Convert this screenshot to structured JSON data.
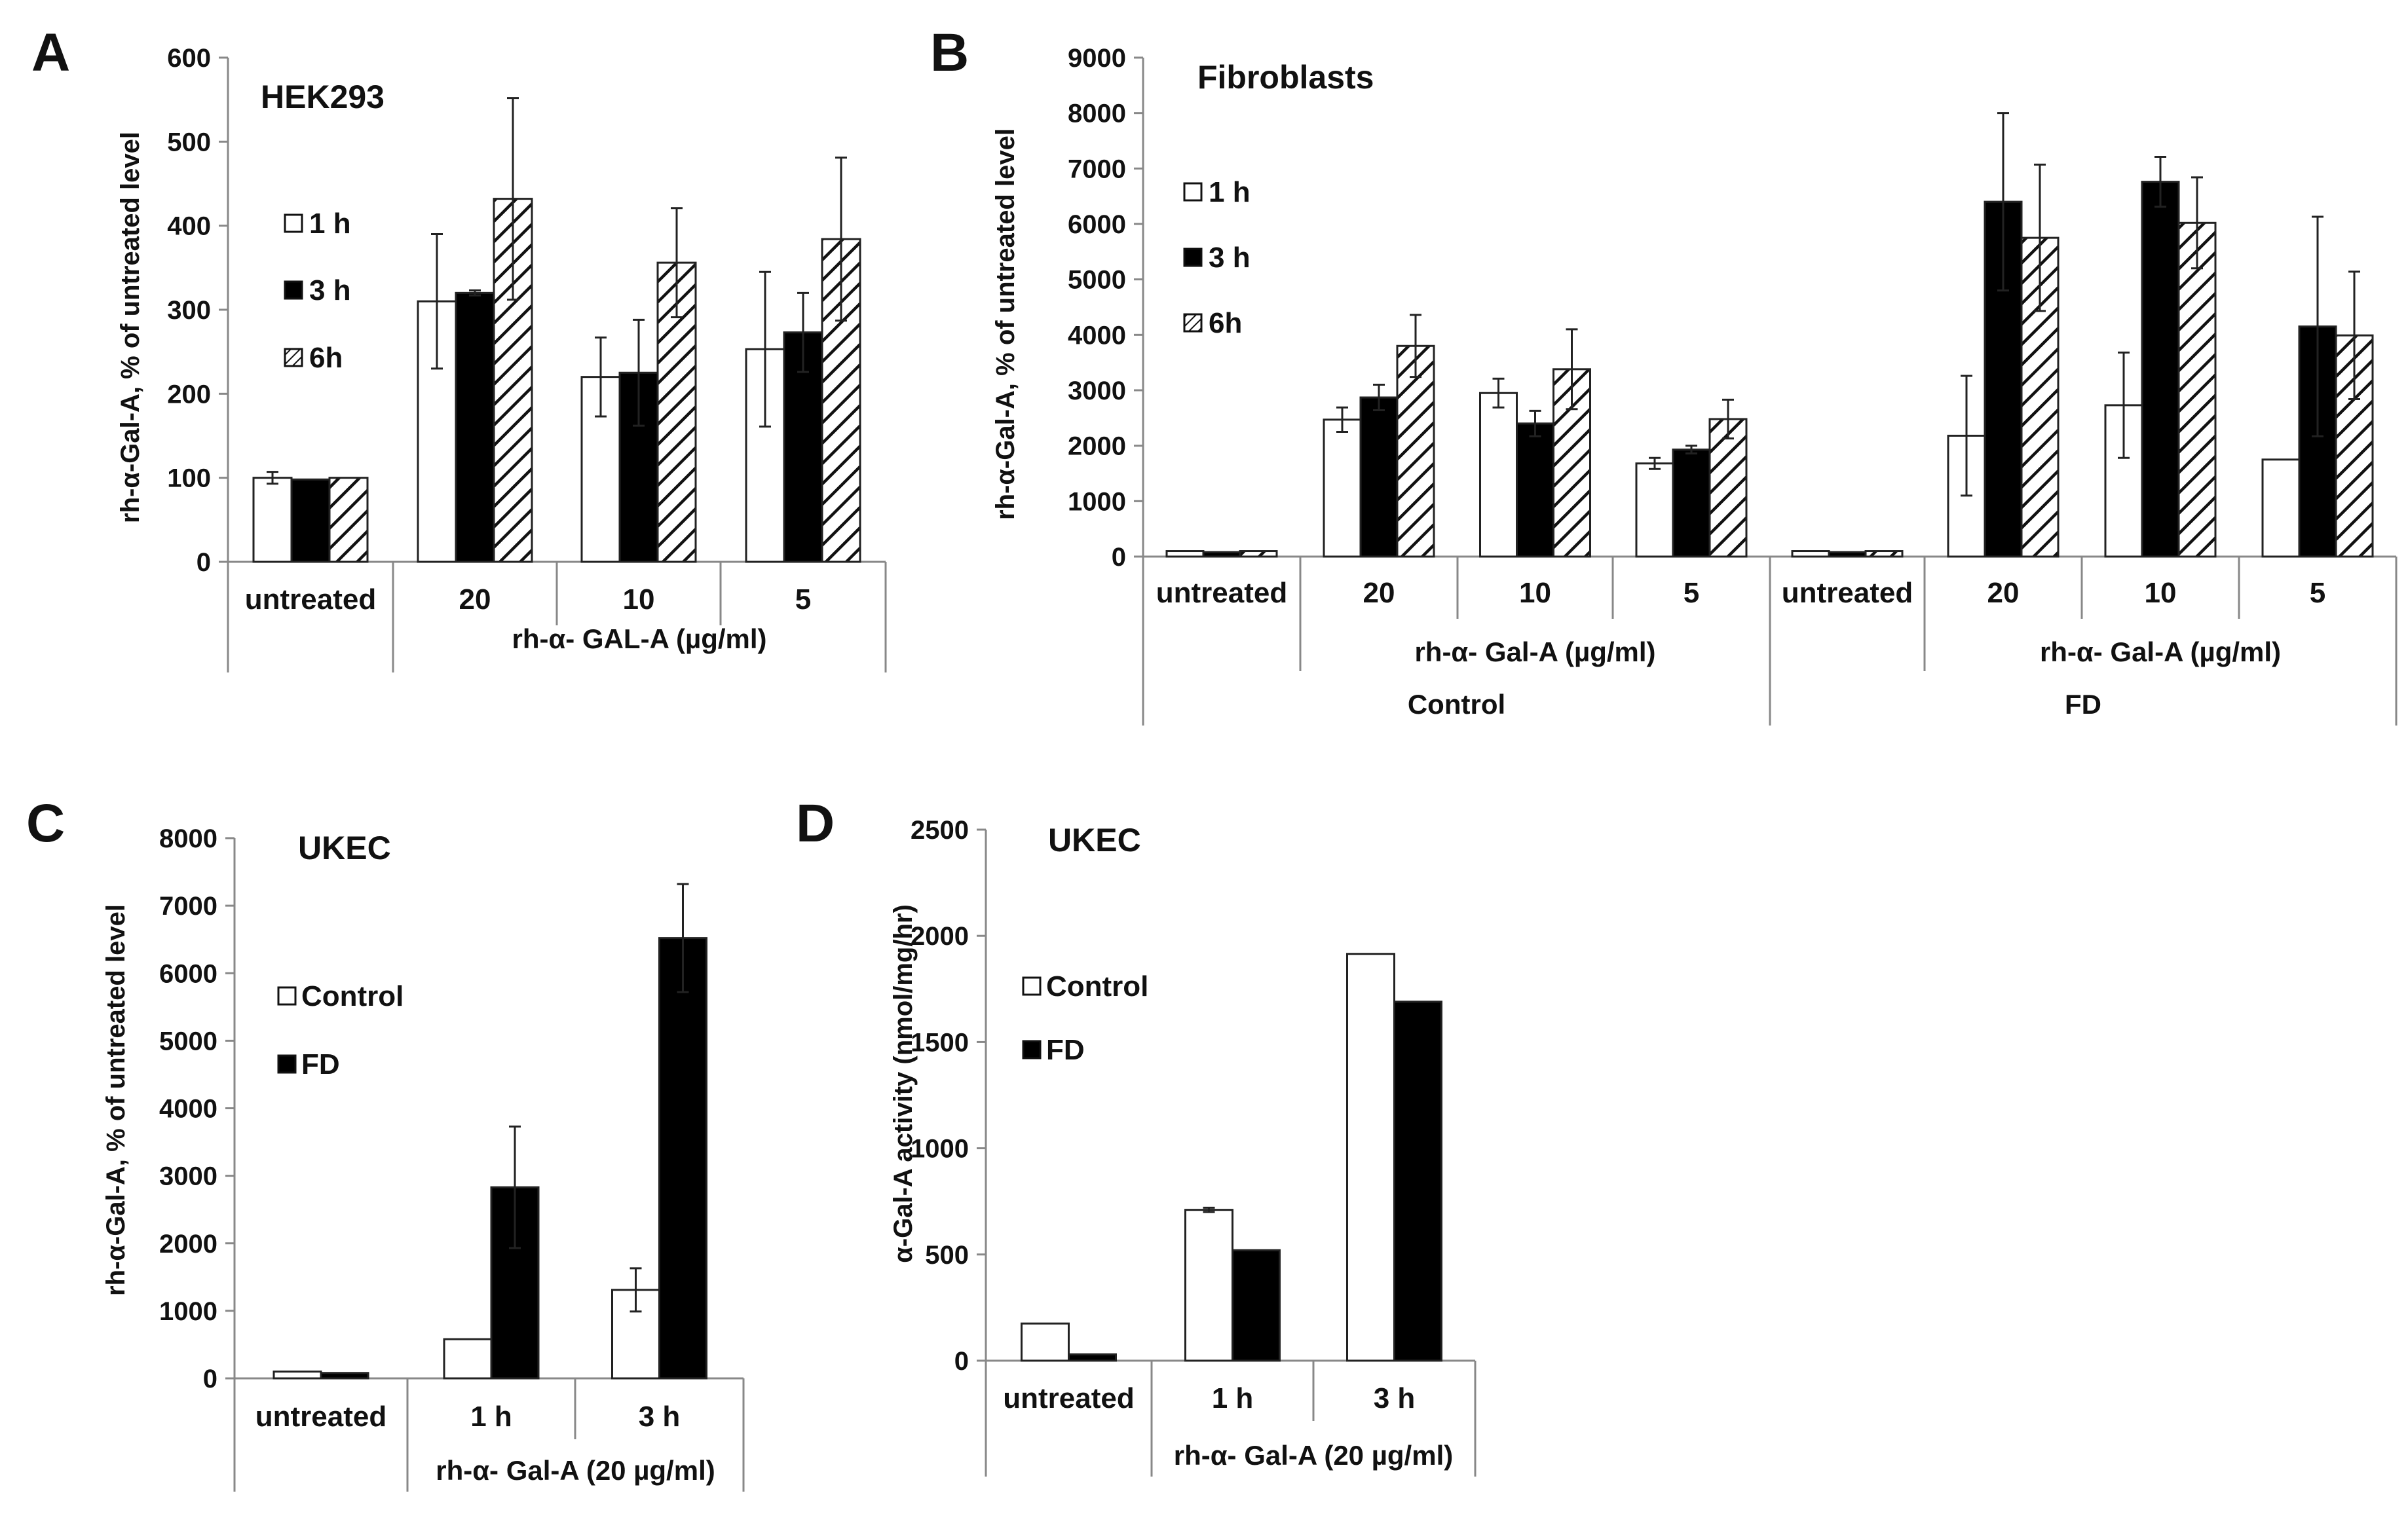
{
  "figure": {
    "colors": {
      "control_fill": "#ffffff",
      "fd_fill": "#000000",
      "stroke": "#222222",
      "axis": "#888888"
    }
  },
  "chart_data": [
    {
      "panel": "A",
      "type": "bar",
      "title": "HEK293",
      "ylabel": "rh-α-Gal-A, % of untreated level",
      "ylim": [
        0,
        600
      ],
      "yticks": [
        0,
        100,
        200,
        300,
        400,
        500,
        600
      ],
      "categories": [
        "untreated",
        "20",
        "10",
        "5"
      ],
      "groups": [
        {
          "label": "rh-α- GAL-A (µg/ml)",
          "level": 1,
          "categories": [
            "20",
            "10",
            "5"
          ]
        }
      ],
      "legend": {
        "position": "top-left",
        "entries": [
          "1 h",
          "3 h",
          "6h"
        ]
      },
      "series": [
        {
          "name": "1 h",
          "style": "open",
          "values": [
            100,
            310,
            220,
            253
          ],
          "errors": [
            7,
            80,
            47,
            92
          ]
        },
        {
          "name": "3 h",
          "style": "filled",
          "values": [
            98,
            320,
            225,
            273
          ],
          "errors": [
            0,
            3,
            63,
            47
          ]
        },
        {
          "name": "6h",
          "style": "hatched",
          "values": [
            100,
            432,
            356,
            384
          ],
          "errors": [
            0,
            120,
            65,
            97
          ]
        }
      ]
    },
    {
      "panel": "B",
      "type": "bar",
      "title": "Fibroblasts",
      "ylabel": "rh-α-Gal-A, % of untreated level",
      "ylim": [
        0,
        9000
      ],
      "yticks": [
        0,
        1000,
        2000,
        3000,
        4000,
        5000,
        6000,
        7000,
        8000,
        9000
      ],
      "categories": [
        "untreated",
        "20",
        "10",
        "5",
        "untreated",
        "20",
        "10",
        "5"
      ],
      "groups": [
        {
          "label": "rh-α- Gal-A (µg/ml)",
          "level": 1,
          "categories": [
            "20",
            "10",
            "5"
          ]
        },
        {
          "label": "rh-α- Gal-A (µg/ml)",
          "level": 1,
          "categories": [
            "20",
            "10",
            "5"
          ]
        },
        {
          "label": "Control",
          "level": 2,
          "categories": [
            "untreated",
            "20",
            "10",
            "5"
          ]
        },
        {
          "label": "FD",
          "level": 2,
          "categories": [
            "untreated",
            "20",
            "10",
            "5"
          ]
        }
      ],
      "legend": {
        "position": "top-left",
        "entries": [
          "1 h",
          "3 h",
          "6h"
        ]
      },
      "series": [
        {
          "name": "1 h",
          "style": "open",
          "values": [
            100,
            2470,
            2950,
            1680,
            100,
            2180,
            2730,
            1750
          ],
          "errors": [
            0,
            220,
            260,
            100,
            0,
            1080,
            950,
            0
          ]
        },
        {
          "name": "3 h",
          "style": "filled",
          "values": [
            80,
            2870,
            2400,
            1930,
            80,
            6400,
            6760,
            4150
          ],
          "errors": [
            0,
            230,
            230,
            70,
            0,
            1600,
            450,
            1980
          ]
        },
        {
          "name": "6h",
          "style": "hatched",
          "values": [
            100,
            3800,
            3380,
            2480,
            100,
            5750,
            6020,
            3990
          ],
          "errors": [
            0,
            560,
            720,
            350,
            0,
            1320,
            820,
            1150
          ]
        }
      ]
    },
    {
      "panel": "C",
      "type": "bar",
      "title": "UKEC",
      "ylabel": "rh-α-Gal-A, % of untreated level",
      "ylim": [
        0,
        8000
      ],
      "yticks": [
        0,
        1000,
        2000,
        3000,
        4000,
        5000,
        6000,
        7000,
        8000
      ],
      "categories": [
        "untreated",
        "1 h",
        "3 h"
      ],
      "groups": [
        {
          "label": "rh-α- Gal-A (20 µg/ml)",
          "level": 1,
          "categories": [
            "1 h",
            "3 h"
          ]
        }
      ],
      "legend": {
        "position": "top-left",
        "entries": [
          "Control",
          "FD"
        ]
      },
      "series": [
        {
          "name": "Control",
          "style": "open",
          "values": [
            100,
            580,
            1310
          ],
          "errors": [
            0,
            0,
            320
          ]
        },
        {
          "name": "FD",
          "style": "filled",
          "values": [
            80,
            2830,
            6520
          ],
          "errors": [
            0,
            900,
            800
          ]
        }
      ]
    },
    {
      "panel": "D",
      "type": "bar",
      "title": "UKEC",
      "ylabel": "α-Gal-A activity (nmol/mg/hr)",
      "ylim": [
        0,
        2500
      ],
      "yticks": [
        0,
        500,
        1000,
        1500,
        2000,
        2500
      ],
      "categories": [
        "untreated",
        "1 h",
        "3 h"
      ],
      "groups": [
        {
          "label": "rh-α- Gal-A (20 µg/ml)",
          "level": 1,
          "categories": [
            "1 h",
            "3 h"
          ]
        }
      ],
      "legend": {
        "position": "top-left",
        "entries": [
          "Control",
          "FD"
        ]
      },
      "series": [
        {
          "name": "Control",
          "style": "open",
          "values": [
            175,
            710,
            1915
          ],
          "errors": [
            0,
            10,
            0
          ]
        },
        {
          "name": "FD",
          "style": "filled",
          "values": [
            30,
            520,
            1690
          ],
          "errors": [
            0,
            0,
            0
          ]
        }
      ]
    }
  ]
}
